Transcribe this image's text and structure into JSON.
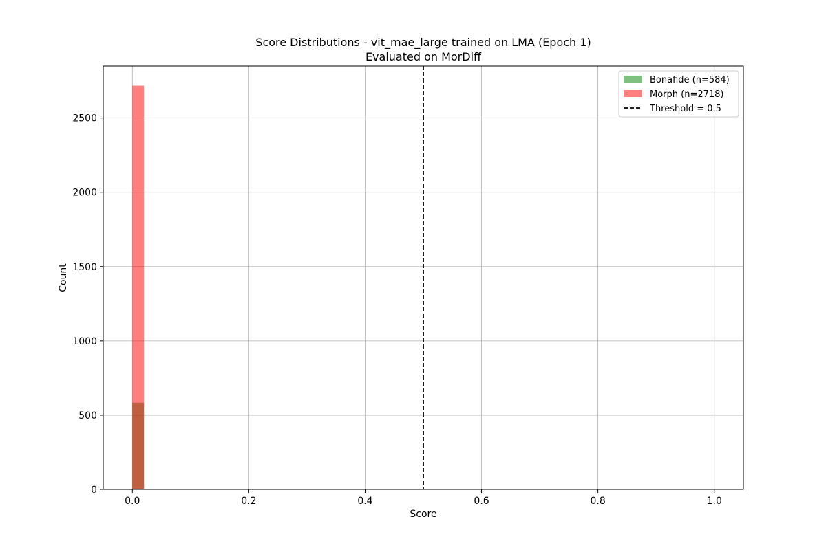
{
  "chart_data": {
    "type": "histogram",
    "title_line1": "Score Distributions - vit_mae_large trained on LMA (Epoch 1)",
    "title_line2": "Evaluated on MorDiff",
    "xlabel": "Score",
    "ylabel": "Count",
    "xlim": [
      -0.05,
      1.05
    ],
    "ylim": [
      0,
      2850
    ],
    "xticks": [
      0.0,
      0.2,
      0.4,
      0.6,
      0.8,
      1.0
    ],
    "xtick_labels": [
      "0.0",
      "0.2",
      "0.4",
      "0.6",
      "0.8",
      "1.0"
    ],
    "yticks": [
      0,
      500,
      1000,
      1500,
      2000,
      2500
    ],
    "ytick_labels": [
      "0",
      "500",
      "1000",
      "1500",
      "2000",
      "2500"
    ],
    "grid": true,
    "legend_position": "top-right",
    "bin_width": 0.02,
    "series": [
      {
        "name": "Bonafide (n=584)",
        "color": "#008000",
        "alpha": 0.5,
        "bins": [
          {
            "x0": 0.0,
            "x1": 0.02,
            "count": 584
          }
        ]
      },
      {
        "name": "Morph (n=2718)",
        "color": "#ff0000",
        "alpha": 0.5,
        "bins": [
          {
            "x0": 0.0,
            "x1": 0.02,
            "count": 2718
          }
        ]
      }
    ],
    "threshold": {
      "label": "Threshold = 0.5",
      "value": 0.5,
      "color": "#000000"
    }
  }
}
